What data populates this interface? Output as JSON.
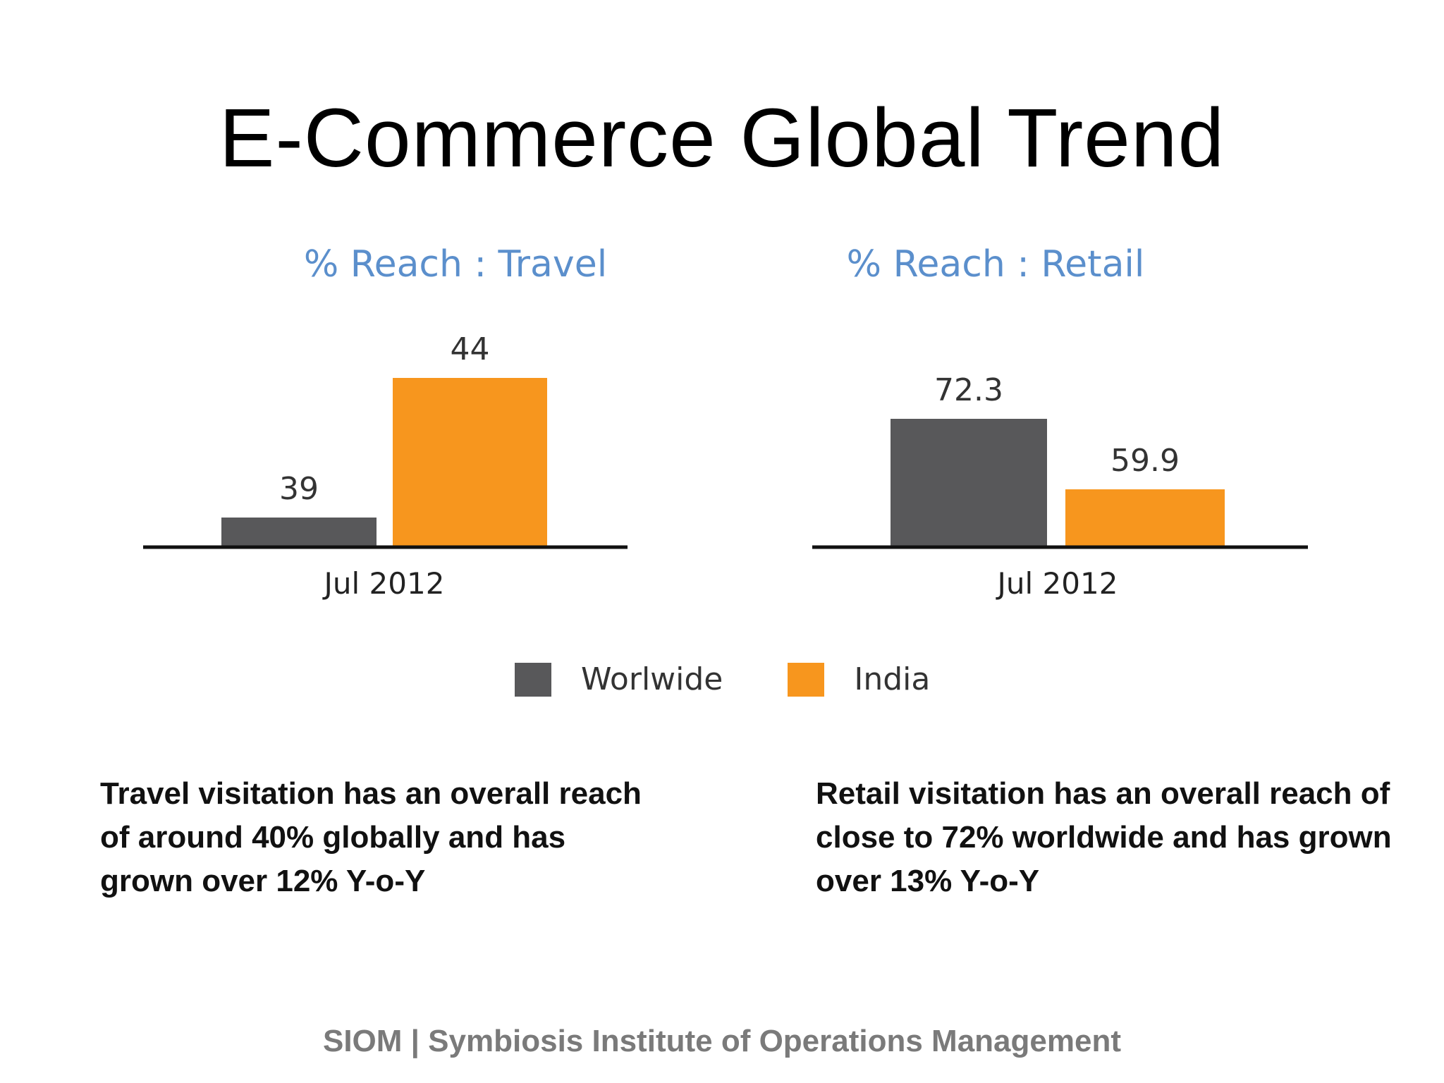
{
  "slide": {
    "title": "E-Commerce Global Trend",
    "footer": "SIOM | Symbiosis Institute of Operations Management",
    "descriptions": {
      "travel": "Travel visitation has an overall reach of around 40% globally and has grown over 12% Y-o-Y",
      "retail": "Retail visitation has an overall reach of close to 72% worldwide and has grown over 13% Y-o-Y"
    }
  },
  "legend": [
    {
      "name": "Worlwide",
      "color": "#58585a"
    },
    {
      "name": "India",
      "color": "#f7961e"
    }
  ],
  "chart_data": [
    {
      "type": "bar",
      "title": "% Reach : Travel",
      "categories": [
        "Jul 2012"
      ],
      "series": [
        {
          "name": "Worlwide",
          "color": "#58585a",
          "values": [
            39
          ]
        },
        {
          "name": "India",
          "color": "#f7961e",
          "values": [
            44
          ]
        }
      ],
      "xlabel": "",
      "ylabel": "",
      "grid": false,
      "legend": "bottom"
    },
    {
      "type": "bar",
      "title": "% Reach : Retail",
      "categories": [
        "Jul 2012"
      ],
      "series": [
        {
          "name": "Worlwide",
          "color": "#58585a",
          "values": [
            72.3
          ]
        },
        {
          "name": "India",
          "color": "#f7961e",
          "values": [
            59.9
          ]
        }
      ],
      "xlabel": "",
      "ylabel": "",
      "grid": false,
      "legend": "bottom"
    }
  ]
}
